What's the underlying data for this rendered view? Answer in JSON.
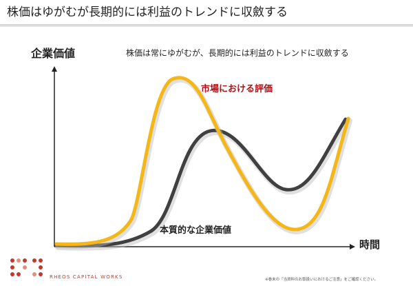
{
  "title": "株価はゆがむが長期的には利益のトレンドに収斂する",
  "subtitle": "株価は常にゆがむが、長期的には利益のトレンドに収斂する",
  "axes": {
    "y_label": "企業価値",
    "x_label": "時間"
  },
  "curves": {
    "market": {
      "label": "市場における評価",
      "color": "#f5b718"
    },
    "intrinsic": {
      "label": "本質的な企業価値",
      "color": "#404040"
    }
  },
  "branding": {
    "company": "RHEOS CAPITAL WORKS",
    "accent_color": "#c0392b"
  },
  "footnote": "※巻末の「当資料のお取扱いにおけるご注意」をご確認ください。"
}
